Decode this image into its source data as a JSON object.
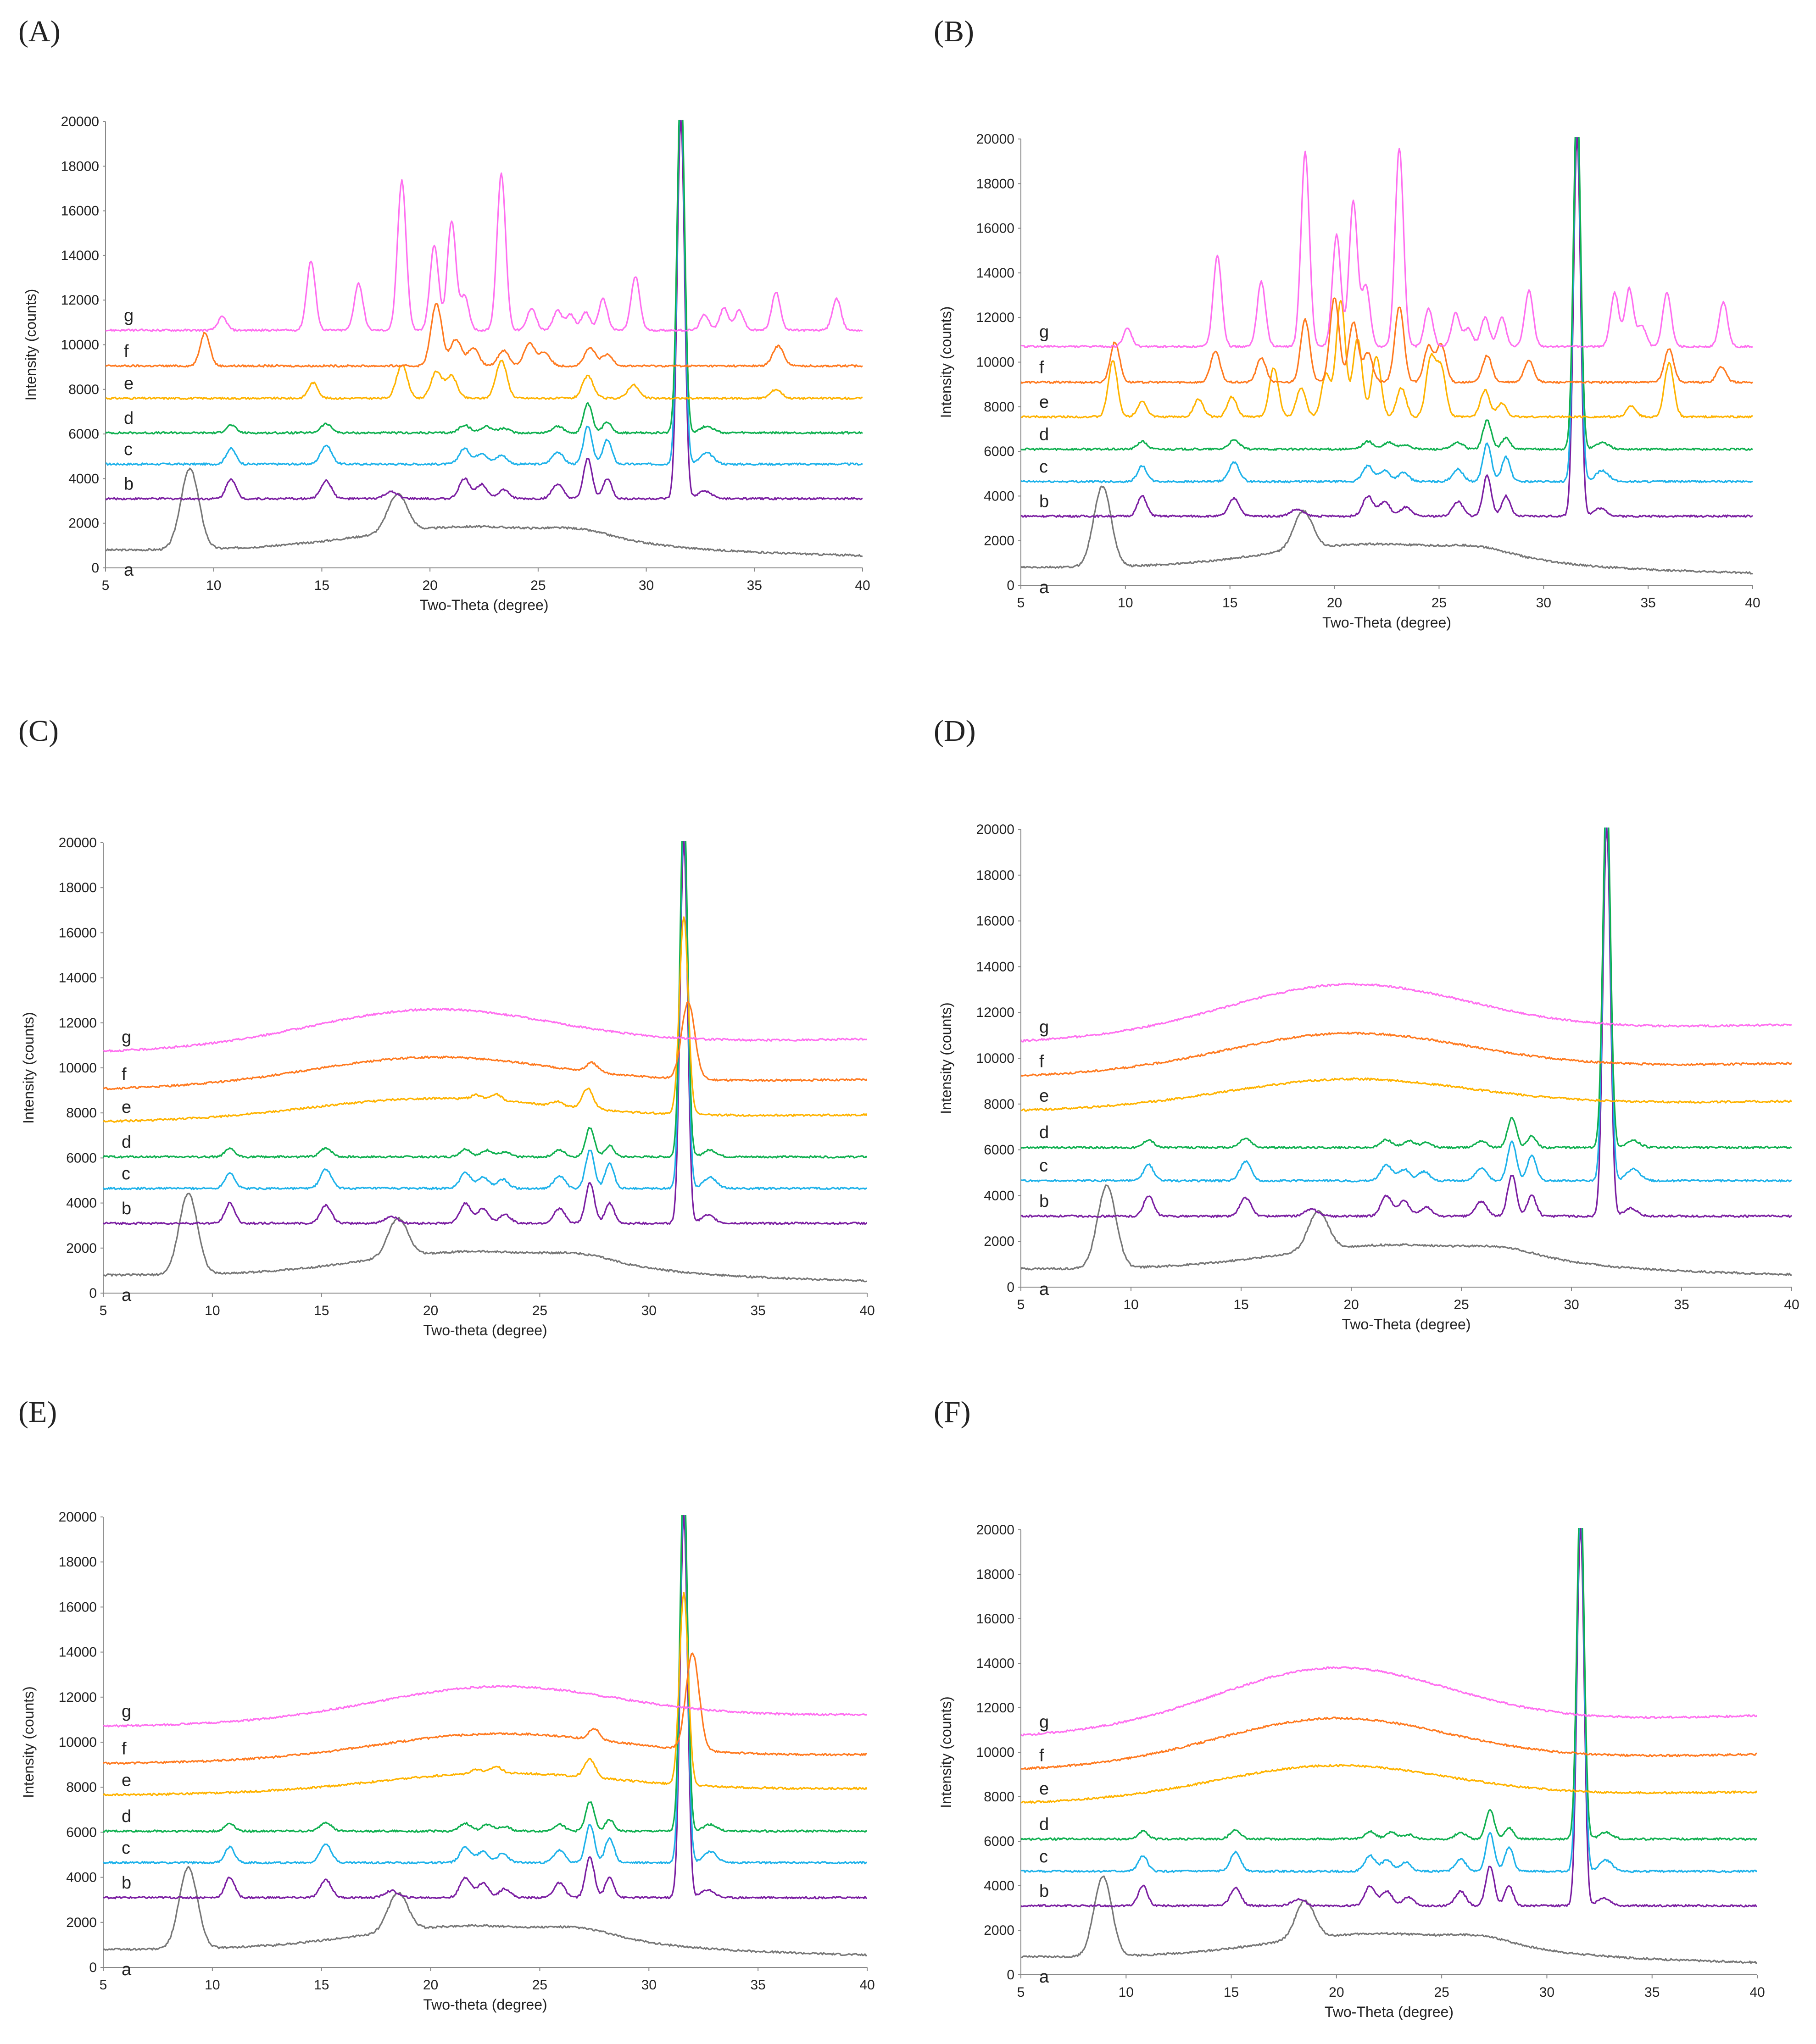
{
  "chart_data": [
    {
      "type": "line",
      "panel_label": "(A)",
      "xlabel": "Two-Theta (degree)",
      "ylabel": "Intensity (counts)",
      "xlim": [
        5,
        40
      ],
      "ylim": [
        0,
        20000
      ],
      "x_ticks": [
        "5",
        "10",
        "15",
        "20",
        "25",
        "30",
        "35",
        "40"
      ],
      "y_ticks": [
        "0",
        "2000",
        "4000",
        "6000",
        "8000",
        "10000",
        "12000",
        "14000",
        "16000",
        "18000",
        "20000"
      ],
      "halo_center": 20,
      "halo_height": 0,
      "baselines": {
        "a": 800,
        "b": 3100,
        "c": 4650,
        "d": 6050,
        "e": 7600,
        "f": 9050,
        "g": 10650
      },
      "extra_peaks": {
        "f": [
          [
            9.6,
            1500,
            0.22
          ],
          [
            20.3,
            2800,
            0.25
          ],
          [
            21.2,
            1200,
            0.25
          ],
          [
            22.0,
            800,
            0.25
          ],
          [
            23.4,
            700,
            0.25
          ],
          [
            24.6,
            1000,
            0.25
          ],
          [
            25.3,
            600,
            0.25
          ],
          [
            27.4,
            800,
            0.25
          ],
          [
            28.2,
            500,
            0.25
          ],
          [
            36.1,
            900,
            0.25
          ]
        ],
        "e": [
          [
            14.6,
            700,
            0.22
          ],
          [
            18.7,
            1500,
            0.25
          ],
          [
            20.3,
            1200,
            0.25
          ],
          [
            21.0,
            1000,
            0.25
          ],
          [
            23.3,
            1700,
            0.25
          ],
          [
            27.3,
            1000,
            0.25
          ],
          [
            29.4,
            600,
            0.25
          ],
          [
            36.0,
            400,
            0.25
          ]
        ],
        "g": [
          [
            10.4,
            600,
            0.2
          ],
          [
            14.5,
            3100,
            0.2
          ],
          [
            16.7,
            2100,
            0.2
          ],
          [
            18.7,
            6700,
            0.2
          ],
          [
            20.2,
            3800,
            0.2
          ],
          [
            21.0,
            4900,
            0.2
          ],
          [
            21.6,
            1500,
            0.2
          ],
          [
            23.3,
            7000,
            0.2
          ],
          [
            24.7,
            1000,
            0.2
          ],
          [
            25.9,
            900,
            0.2
          ],
          [
            26.5,
            700,
            0.2
          ],
          [
            27.2,
            800,
            0.2
          ],
          [
            28.0,
            1400,
            0.2
          ],
          [
            29.5,
            2400,
            0.2
          ],
          [
            32.7,
            700,
            0.2
          ],
          [
            33.6,
            1000,
            0.2
          ],
          [
            34.3,
            900,
            0.2
          ],
          [
            36.0,
            1700,
            0.2
          ],
          [
            38.8,
            1400,
            0.2
          ]
        ]
      },
      "series": [
        {
          "name": "a",
          "color": "#777777"
        },
        {
          "name": "b",
          "color": "#7B1FA2"
        },
        {
          "name": "c",
          "color": "#1EB2EA"
        },
        {
          "name": "d",
          "color": "#10B050"
        },
        {
          "name": "e",
          "color": "#FFB300"
        },
        {
          "name": "f",
          "color": "#FF7A20"
        },
        {
          "name": "g",
          "color": "#FF6FF0"
        }
      ]
    },
    {
      "type": "line",
      "panel_label": "(B)",
      "xlabel": "Two-Theta (degree)",
      "ylabel": "Intensity (counts)",
      "xlim": [
        5,
        40
      ],
      "ylim": [
        0,
        20000
      ],
      "x_ticks": [
        "5",
        "10",
        "15",
        "20",
        "25",
        "30",
        "35",
        "40"
      ],
      "y_ticks": [
        "0",
        "2000",
        "4000",
        "6000",
        "8000",
        "10000",
        "12000",
        "14000",
        "16000",
        "18000",
        "20000"
      ],
      "halo_center": 20,
      "halo_height": 0,
      "baselines": {
        "a": 800,
        "b": 3100,
        "c": 4650,
        "d": 6100,
        "e": 7550,
        "f": 9100,
        "g": 10700
      },
      "extra_peaks": {
        "f": [
          [
            9.5,
            1800,
            0.22
          ],
          [
            14.3,
            1400,
            0.22
          ],
          [
            16.5,
            1100,
            0.22
          ],
          [
            18.6,
            2800,
            0.22
          ],
          [
            20.0,
            3800,
            0.22
          ],
          [
            20.9,
            2700,
            0.22
          ],
          [
            21.6,
            1300,
            0.22
          ],
          [
            23.1,
            3400,
            0.22
          ],
          [
            24.5,
            1600,
            0.22
          ],
          [
            25.1,
            1700,
            0.22
          ],
          [
            27.3,
            1200,
            0.22
          ],
          [
            29.3,
            1000,
            0.22
          ],
          [
            36.0,
            1500,
            0.22
          ],
          [
            38.5,
            700,
            0.22
          ]
        ],
        "e": [
          [
            9.4,
            2500,
            0.22
          ],
          [
            10.8,
            700,
            0.22
          ],
          [
            13.5,
            800,
            0.22
          ],
          [
            15.1,
            900,
            0.22
          ],
          [
            17.1,
            2200,
            0.22
          ],
          [
            18.4,
            1300,
            0.22
          ],
          [
            19.6,
            1900,
            0.22
          ],
          [
            20.3,
            5200,
            0.22
          ],
          [
            21.1,
            3500,
            0.22
          ],
          [
            22.0,
            2700,
            0.22
          ],
          [
            23.2,
            1300,
            0.22
          ],
          [
            24.6,
            2600,
            0.22
          ],
          [
            25.1,
            2200,
            0.22
          ],
          [
            27.2,
            1200,
            0.22
          ],
          [
            28.0,
            600,
            0.22
          ],
          [
            34.2,
            500,
            0.22
          ],
          [
            36.0,
            2400,
            0.22
          ]
        ],
        "g": [
          [
            10.1,
            800,
            0.2
          ],
          [
            14.4,
            4100,
            0.2
          ],
          [
            16.5,
            2900,
            0.2
          ],
          [
            18.6,
            8700,
            0.2
          ],
          [
            20.1,
            5000,
            0.2
          ],
          [
            20.9,
            6500,
            0.2
          ],
          [
            21.5,
            2700,
            0.2
          ],
          [
            23.1,
            8900,
            0.2
          ],
          [
            24.5,
            1700,
            0.2
          ],
          [
            25.8,
            1500,
            0.2
          ],
          [
            26.4,
            800,
            0.2
          ],
          [
            27.2,
            1300,
            0.2
          ],
          [
            28.0,
            1300,
            0.2
          ],
          [
            29.3,
            2500,
            0.2
          ],
          [
            33.4,
            2400,
            0.2
          ],
          [
            34.1,
            2600,
            0.2
          ],
          [
            34.7,
            900,
            0.2
          ],
          [
            35.9,
            2400,
            0.2
          ],
          [
            38.6,
            2000,
            0.2
          ]
        ]
      },
      "series": [
        {
          "name": "a",
          "color": "#777777"
        },
        {
          "name": "b",
          "color": "#7B1FA2"
        },
        {
          "name": "c",
          "color": "#1EB2EA"
        },
        {
          "name": "d",
          "color": "#10B050"
        },
        {
          "name": "e",
          "color": "#FFB300"
        },
        {
          "name": "f",
          "color": "#FF7A20"
        },
        {
          "name": "g",
          "color": "#FF6FF0"
        }
      ]
    },
    {
      "type": "line",
      "panel_label": "(C)",
      "xlabel": "Two-theta (degree)",
      "ylabel": "Intensity (counts)",
      "xlim": [
        5,
        40
      ],
      "ylim": [
        0,
        20000
      ],
      "x_ticks": [
        "5",
        "10",
        "15",
        "20",
        "25",
        "30",
        "35",
        "40"
      ],
      "y_ticks": [
        "0",
        "2000",
        "4000",
        "6000",
        "8000",
        "10000",
        "12000",
        "14000",
        "16000",
        "18000",
        "20000"
      ],
      "halo_center": 20,
      "halo_height": 1650,
      "baselines": {
        "a": 800,
        "b": 3100,
        "c": 4650,
        "d": 6050,
        "e": 7600,
        "f": 9050,
        "g": 10700
      },
      "extra_peaks": {
        "f": [
          [
            27.4,
            400,
            0.25
          ],
          [
            31.8,
            3400,
            0.3
          ]
        ],
        "e": [
          [
            22.1,
            200,
            0.25
          ],
          [
            23.0,
            300,
            0.25
          ],
          [
            25.8,
            200,
            0.25
          ],
          [
            27.2,
            900,
            0.25
          ],
          [
            31.6,
            8800,
            0.2
          ]
        ],
        "g": []
      },
      "series": [
        {
          "name": "a",
          "color": "#777777"
        },
        {
          "name": "b",
          "color": "#7B1FA2"
        },
        {
          "name": "c",
          "color": "#1EB2EA"
        },
        {
          "name": "d",
          "color": "#10B050"
        },
        {
          "name": "e",
          "color": "#FFB300"
        },
        {
          "name": "f",
          "color": "#FF7A20"
        },
        {
          "name": "g",
          "color": "#FF6FF0"
        }
      ]
    },
    {
      "type": "line",
      "panel_label": "(D)",
      "xlabel": "Two-Theta (degree)",
      "ylabel": "Intensity (counts)",
      "xlim": [
        5,
        40
      ],
      "ylim": [
        0,
        20000
      ],
      "x_ticks": [
        "5",
        "10",
        "15",
        "20",
        "25",
        "30",
        "35",
        "40"
      ],
      "y_ticks": [
        "0",
        "2000",
        "4000",
        "6000",
        "8000",
        "10000",
        "12000",
        "14000",
        "16000",
        "18000",
        "20000"
      ],
      "halo_center": 19.8,
      "halo_height": 2200,
      "baselines": {
        "a": 800,
        "b": 3100,
        "c": 4650,
        "d": 6100,
        "e": 7700,
        "f": 9200,
        "g": 10700
      },
      "extra_peaks": {
        "f": [],
        "e": [],
        "g": []
      },
      "series": [
        {
          "name": "a",
          "color": "#777777"
        },
        {
          "name": "b",
          "color": "#7B1FA2"
        },
        {
          "name": "c",
          "color": "#1EB2EA"
        },
        {
          "name": "d",
          "color": "#10B050"
        },
        {
          "name": "e",
          "color": "#FFB300"
        },
        {
          "name": "f",
          "color": "#FF7A20"
        },
        {
          "name": "g",
          "color": "#FF6FF0"
        }
      ]
    },
    {
      "type": "line",
      "panel_label": "(E)",
      "xlabel": "Two-theta (degree)",
      "ylabel": "Intensity (counts)",
      "xlim": [
        5,
        40
      ],
      "ylim": [
        0,
        20000
      ],
      "x_ticks": [
        "5",
        "10",
        "15",
        "20",
        "25",
        "30",
        "35",
        "40"
      ],
      "y_ticks": [
        "0",
        "2000",
        "4000",
        "6000",
        "8000",
        "10000",
        "12000",
        "14000",
        "16000",
        "18000",
        "20000"
      ],
      "halo_center": 23,
      "halo_height": 1500,
      "baselines": {
        "a": 800,
        "b": 3100,
        "c": 4650,
        "d": 6050,
        "e": 7650,
        "f": 9050,
        "g": 10700
      },
      "extra_peaks": {
        "f": [
          [
            27.5,
            500,
            0.25
          ],
          [
            32.0,
            4300,
            0.3
          ]
        ],
        "e": [
          [
            22.1,
            200,
            0.25
          ],
          [
            23.0,
            300,
            0.25
          ],
          [
            27.3,
            800,
            0.25
          ],
          [
            31.6,
            8500,
            0.2
          ]
        ],
        "g": []
      },
      "series": [
        {
          "name": "a",
          "color": "#777777"
        },
        {
          "name": "b",
          "color": "#7B1FA2"
        },
        {
          "name": "c",
          "color": "#1EB2EA"
        },
        {
          "name": "d",
          "color": "#10B050"
        },
        {
          "name": "e",
          "color": "#FFB300"
        },
        {
          "name": "f",
          "color": "#FF7A20"
        },
        {
          "name": "g",
          "color": "#FF6FF0"
        }
      ]
    },
    {
      "type": "line",
      "panel_label": "(F)",
      "xlabel": "Two-Theta (degree)",
      "ylabel": "Intensity (counts)",
      "xlim": [
        5,
        40
      ],
      "ylim": [
        0,
        20000
      ],
      "x_ticks": [
        "5",
        "10",
        "15",
        "20",
        "25",
        "30",
        "35",
        "40"
      ],
      "y_ticks": [
        "0",
        "2000",
        "4000",
        "6000",
        "8000",
        "10000",
        "12000",
        "14000",
        "16000",
        "18000",
        "20000"
      ],
      "halo_center": 19.8,
      "halo_height": 2700,
      "baselines": {
        "a": 800,
        "b": 3100,
        "c": 4650,
        "d": 6100,
        "e": 7700,
        "f": 9200,
        "g": 10700
      },
      "extra_peaks": {
        "f": [],
        "e": [],
        "g": []
      },
      "series": [
        {
          "name": "a",
          "color": "#777777"
        },
        {
          "name": "b",
          "color": "#7B1FA2"
        },
        {
          "name": "c",
          "color": "#1EB2EA"
        },
        {
          "name": "d",
          "color": "#10B050"
        },
        {
          "name": "e",
          "color": "#FFB300"
        },
        {
          "name": "f",
          "color": "#FF7A20"
        },
        {
          "name": "g",
          "color": "#FF6FF0"
        }
      ]
    }
  ]
}
